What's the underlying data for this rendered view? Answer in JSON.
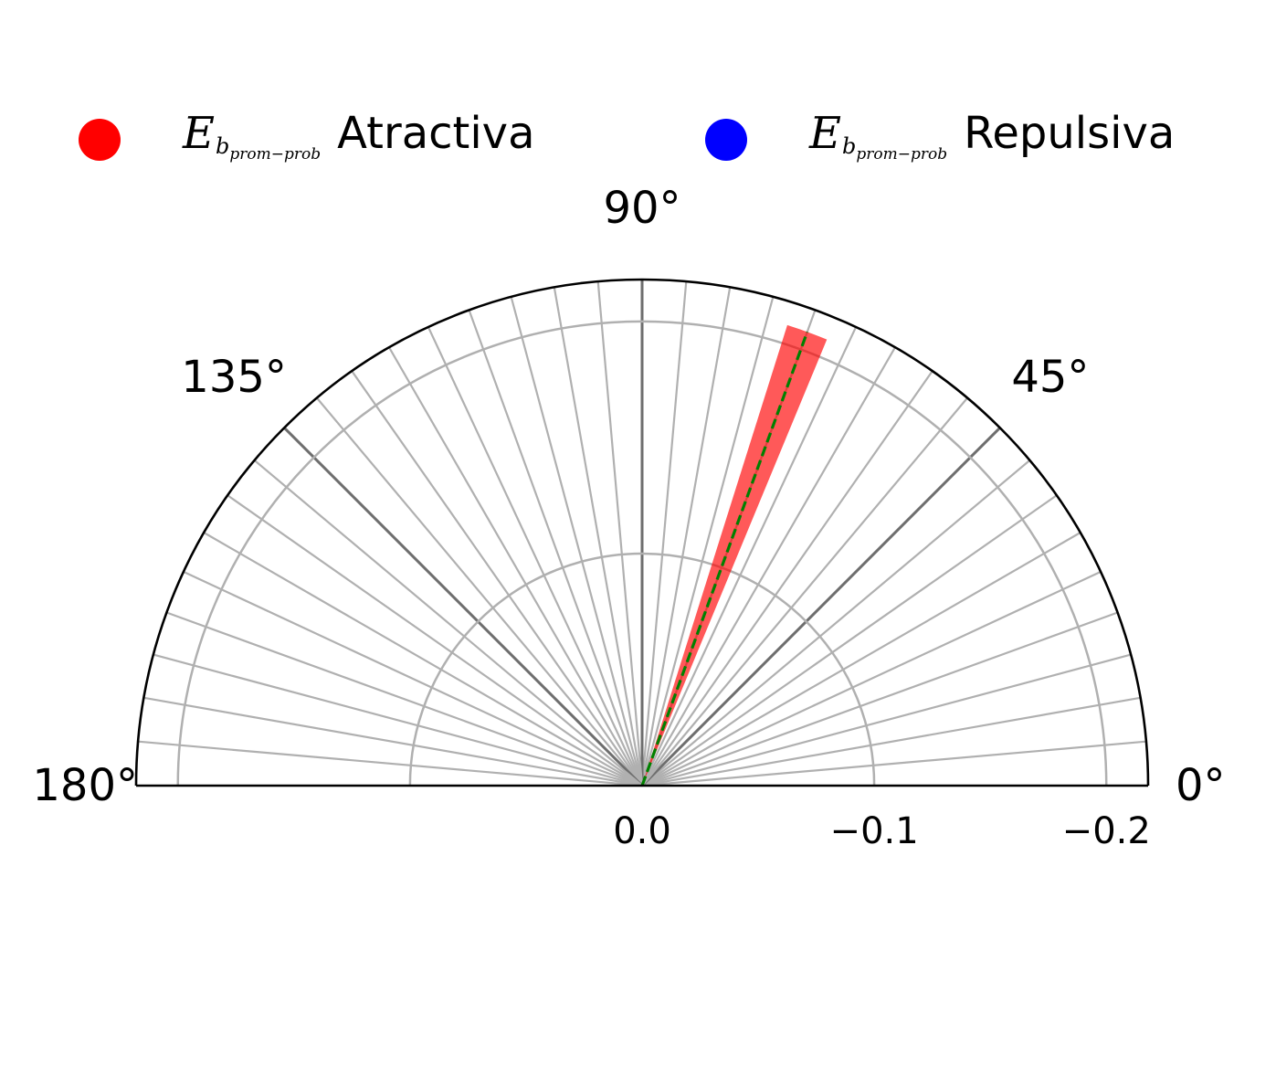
{
  "chart_data": {
    "type": "polar-bar",
    "theta_range_deg": [
      0,
      180
    ],
    "theta_ticks_deg": [
      0,
      45,
      90,
      135,
      180
    ],
    "theta_tick_labels": [
      "0°",
      "45°",
      "90°",
      "135°",
      "180°"
    ],
    "radial_ticks": [
      0.0,
      -0.1,
      -0.2
    ],
    "radial_tick_labels": [
      "0.0",
      "−0.1",
      "−0.2"
    ],
    "r_lim": [
      0.0,
      -0.218
    ],
    "radial_gridlines": [
      -0.1,
      -0.2
    ],
    "theta_gridline_step_deg": 5,
    "major_theta_gridlines_deg": [
      45,
      90,
      135
    ],
    "grid": true,
    "legend_position": "top",
    "series": [
      {
        "name_prefix": "E",
        "name_subscript": "b",
        "name_subsubscript": "prom−prob",
        "name_suffix": "Atractiva",
        "color": "#ff0000",
        "bars": [
          {
            "theta_start_deg": 67.5,
            "theta_end_deg": 72.5,
            "value": -0.208
          }
        ]
      },
      {
        "name_prefix": "E",
        "name_subscript": "b",
        "name_subsubscript": "prom−prob",
        "name_suffix": "Repulsiva",
        "color": "#0000ff",
        "bars": []
      }
    ],
    "reference_line": {
      "theta_deg": 70.0,
      "value": -0.208,
      "color": "#008000",
      "style": "dashed"
    }
  }
}
